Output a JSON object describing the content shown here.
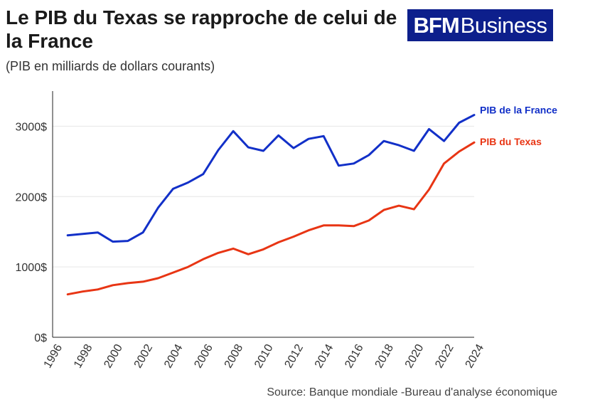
{
  "header": {
    "title": "Le PIB du Texas se rapproche de celui de la France",
    "subtitle": "(PIB en milliards de dollars courants)"
  },
  "logo": {
    "bfm": "BFM",
    "business": "Business"
  },
  "source": "Source: Banque mondiale -Bureau d'analyse économique",
  "colors": {
    "france": "#1230c8",
    "texas": "#e83514",
    "grid": "#e6e6e6",
    "axis": "#222222"
  },
  "chart_data": {
    "type": "line",
    "xlim": [
      1996,
      2024
    ],
    "ylim": [
      0,
      3500
    ],
    "x_ticks": [
      "1996",
      "1998",
      "2000",
      "2002",
      "2004",
      "2006",
      "2008",
      "2010",
      "2012",
      "2014",
      "2016",
      "2018",
      "2020",
      "2022",
      "2024"
    ],
    "y_ticks": [
      {
        "value": 0,
        "label": "0$"
      },
      {
        "value": 1000,
        "label": "1000$"
      },
      {
        "value": 2000,
        "label": "2000$"
      },
      {
        "value": 3000,
        "label": "3000$"
      }
    ],
    "x": [
      1997,
      1998,
      1999,
      2000,
      2001,
      2002,
      2003,
      2004,
      2005,
      2006,
      2007,
      2008,
      2009,
      2010,
      2011,
      2012,
      2013,
      2014,
      2015,
      2016,
      2017,
      2018,
      2019,
      2020,
      2021,
      2022,
      2023,
      2024
    ],
    "series": [
      {
        "name": "PIB de la France",
        "color": "#1230c8",
        "values": [
          1450,
          1470,
          1490,
          1360,
          1370,
          1490,
          1840,
          2110,
          2200,
          2320,
          2660,
          2930,
          2700,
          2650,
          2870,
          2690,
          2820,
          2860,
          2440,
          2470,
          2590,
          2790,
          2730,
          2650,
          2960,
          2790,
          3050,
          3160
        ]
      },
      {
        "name": "PIB du Texas",
        "color": "#e83514",
        "values": [
          610,
          650,
          680,
          740,
          770,
          790,
          840,
          920,
          1000,
          1110,
          1200,
          1260,
          1180,
          1250,
          1350,
          1430,
          1520,
          1590,
          1590,
          1580,
          1660,
          1810,
          1870,
          1820,
          2100,
          2470,
          2640,
          2770
        ]
      }
    ],
    "grid": true,
    "legend": "direct labels at line ends"
  }
}
